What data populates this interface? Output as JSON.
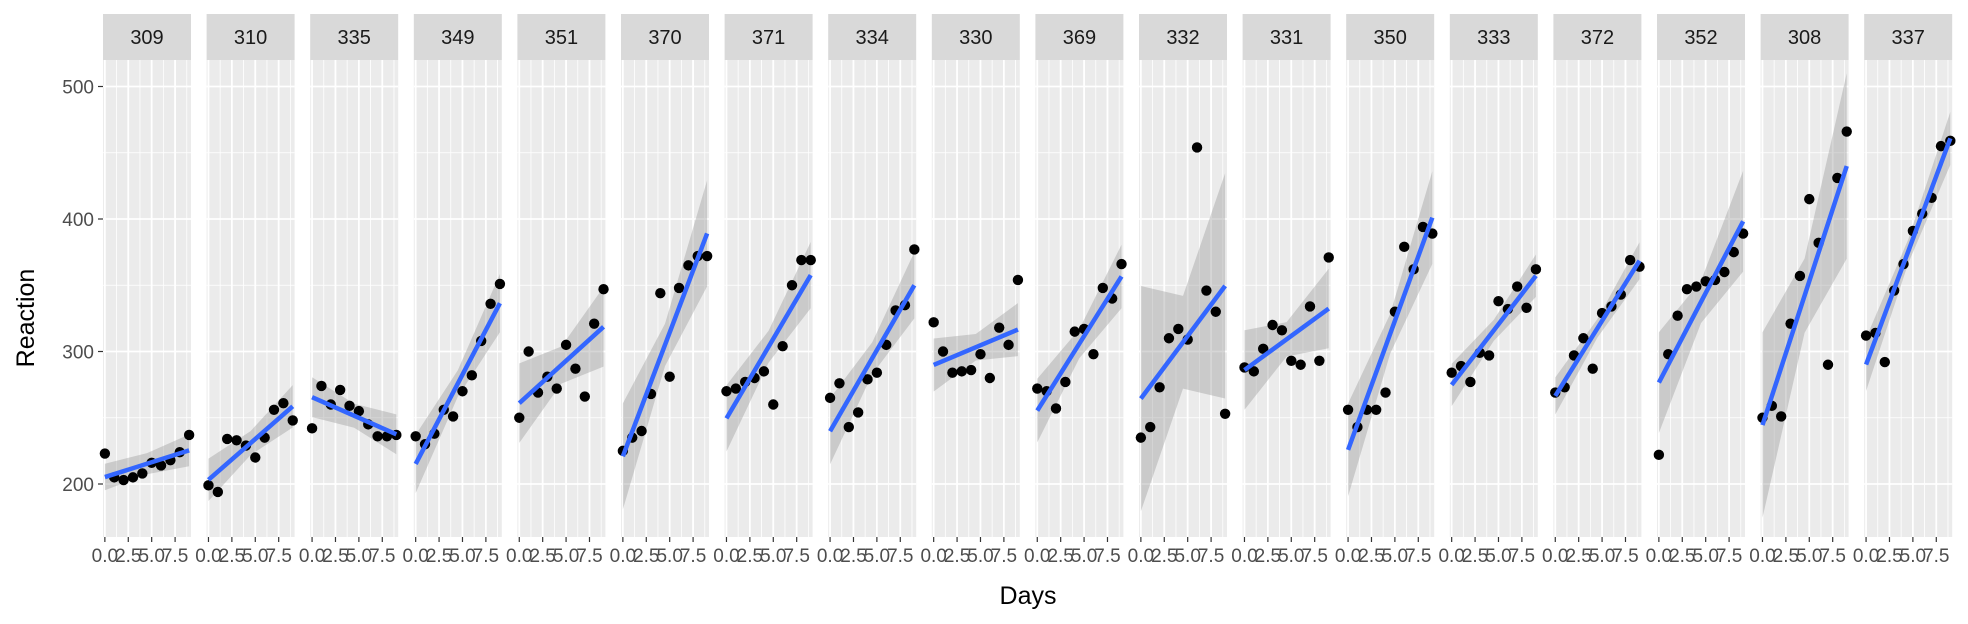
{
  "chart_data": {
    "type": "scatter",
    "xlabel": "Days",
    "ylabel": "Reaction",
    "xlim": [
      -0.2,
      9.2
    ],
    "ylim": [
      160,
      520
    ],
    "x_ticks": [
      0,
      2.5,
      5,
      7.5
    ],
    "x_tick_labels": [
      "0.0",
      "2.5",
      "5.0",
      "7.5"
    ],
    "y_ticks": [
      200,
      300,
      400,
      500
    ],
    "y_tick_labels": [
      "200",
      "300",
      "400",
      "500"
    ],
    "grid": true,
    "facet_by": "Subject",
    "smoother": "linear fit with confidence band",
    "colors": {
      "panel_bg": "#ebebeb",
      "grid_major": "#ffffff",
      "strip_bg": "#d9d9d9",
      "points": "#000000",
      "fit_line": "#3366ff",
      "band": "#999999"
    },
    "x": [
      0,
      1,
      2,
      3,
      4,
      5,
      6,
      7,
      8,
      9
    ],
    "panels": [
      {
        "label": "309",
        "y": [
          223,
          205,
          203,
          205,
          208,
          216,
          214,
          218,
          224,
          237
        ],
        "band": [
          10,
          8,
          12
        ]
      },
      {
        "label": "310",
        "y": [
          199,
          194,
          234,
          233,
          229,
          220,
          235,
          256,
          261,
          248
        ],
        "band": [
          16,
          9,
          16
        ]
      },
      {
        "label": "335",
        "y": [
          242,
          274,
          260,
          271,
          259,
          255,
          245,
          236,
          236,
          237
        ],
        "band": [
          15,
          9,
          15
        ]
      },
      {
        "label": "349",
        "y": [
          236,
          230,
          238,
          256,
          251,
          270,
          282,
          308,
          336,
          351
        ],
        "band": [
          22,
          10,
          22
        ]
      },
      {
        "label": "351",
        "y": [
          250,
          300,
          269,
          281,
          272,
          305,
          287,
          266,
          321,
          347
        ],
        "band": [
          30,
          14,
          30
        ]
      },
      {
        "label": "370",
        "y": [
          225,
          235,
          240,
          268,
          344,
          281,
          348,
          365,
          372,
          372
        ],
        "band": [
          40,
          16,
          40
        ]
      },
      {
        "label": "371",
        "y": [
          270,
          272,
          277,
          280,
          285,
          260,
          304,
          350,
          369,
          369
        ],
        "band": [
          25,
          12,
          25
        ]
      },
      {
        "label": "334",
        "y": [
          265,
          276,
          243,
          254,
          279,
          284,
          305,
          331,
          335,
          377
        ],
        "band": [
          25,
          12,
          25
        ]
      },
      {
        "label": "330",
        "y": [
          322,
          300,
          284,
          285,
          286,
          298,
          280,
          318,
          305,
          354
        ],
        "band": [
          20,
          10,
          20
        ]
      },
      {
        "label": "369",
        "y": [
          272,
          270,
          257,
          277,
          315,
          317,
          298,
          348,
          340,
          366
        ],
        "band": [
          24,
          11,
          24
        ]
      },
      {
        "label": "332",
        "y": [
          235,
          243,
          273,
          310,
          317,
          309,
          454,
          346,
          330,
          253
        ],
        "band": [
          85,
          35,
          85
        ]
      },
      {
        "label": "331",
        "y": [
          288,
          285,
          302,
          320,
          316,
          293,
          290,
          334,
          293,
          371
        ],
        "band": [
          30,
          13,
          30
        ]
      },
      {
        "label": "350",
        "y": [
          256,
          243,
          256,
          256,
          269,
          330,
          379,
          362,
          394,
          389
        ],
        "band": [
          35,
          15,
          35
        ]
      },
      {
        "label": "333",
        "y": [
          284,
          289,
          277,
          299,
          297,
          338,
          332,
          349,
          333,
          362
        ],
        "band": [
          16,
          8,
          16
        ]
      },
      {
        "label": "372",
        "y": [
          269,
          273,
          297,
          310,
          287,
          329,
          334,
          343,
          369,
          364
        ],
        "band": [
          14,
          7,
          14
        ]
      },
      {
        "label": "352",
        "y": [
          222,
          298,
          327,
          347,
          349,
          353,
          354,
          360,
          375,
          389
        ],
        "band": [
          38,
          16,
          38
        ]
      },
      {
        "label": "308",
        "y": [
          250,
          259,
          251,
          321,
          357,
          415,
          382,
          290,
          431,
          466
        ],
        "band": [
          70,
          28,
          70
        ]
      },
      {
        "label": "337",
        "y": [
          312,
          314,
          292,
          346,
          366,
          391,
          404,
          416,
          455,
          459
        ],
        "band": [
          20,
          9,
          20
        ]
      }
    ]
  }
}
